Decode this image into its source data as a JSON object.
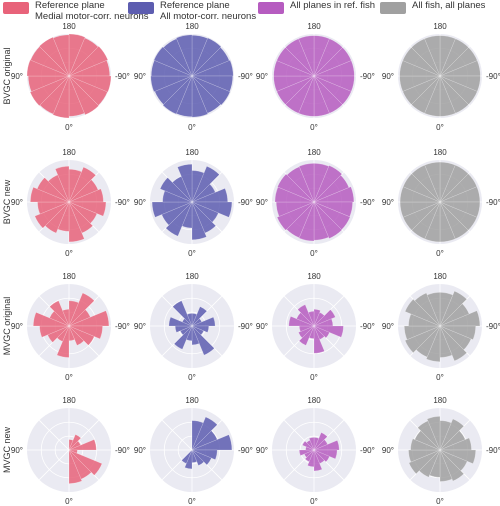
{
  "legend": [
    {
      "line1": "Reference plane",
      "line2": "Medial motor-corr. neurons",
      "color": "#e8637a"
    },
    {
      "line1": "Reference plane",
      "line2": "All motor-corr. neurons",
      "color": "#5d5db0"
    },
    {
      "line1": "All planes in ref. fish",
      "line2": "",
      "color": "#b65cc0"
    },
    {
      "line1": "All fish, all planes",
      "line2": "",
      "color": "#a0a0a0"
    }
  ],
  "row_labels": [
    "BVGC original",
    "BVGC new",
    "MVGC original",
    "MVGC new"
  ],
  "angle_labels": {
    "top": "180",
    "left": "90°",
    "right": "-90°",
    "bottom": "0°"
  },
  "chart_data": {
    "type": "polar-histogram",
    "bins": 16,
    "angle_labels": [
      "180",
      "90°",
      "-90°",
      "0°"
    ],
    "series_colors": [
      "#e8637a",
      "#5d5db0",
      "#b65cc0",
      "#a0a0a0"
    ],
    "rows": [
      {
        "label": "BVGC original",
        "panels": [
          [
            1.0,
            0.98,
            1.0,
            0.97,
            1.0,
            0.99,
            1.0,
            0.96,
            1.0,
            0.98,
            1.0,
            0.97,
            1.0,
            0.99,
            1.0,
            0.98
          ],
          [
            0.97,
            0.98,
            0.96,
            0.98,
            0.97,
            0.98,
            0.96,
            0.98,
            0.97,
            0.98,
            0.96,
            0.98,
            0.97,
            0.98,
            0.96,
            0.98
          ],
          [
            0.96,
            0.96,
            0.96,
            0.96,
            0.96,
            0.96,
            0.96,
            0.96,
            0.96,
            0.96,
            0.96,
            0.96,
            0.96,
            0.96,
            0.96,
            0.96
          ],
          [
            0.96,
            0.96,
            0.96,
            0.96,
            0.96,
            0.96,
            0.96,
            0.96,
            0.96,
            0.96,
            0.96,
            0.96,
            0.96,
            0.96,
            0.96,
            0.96
          ]
        ]
      },
      {
        "label": "BVGC new",
        "panels": [
          [
            0.78,
            0.9,
            0.75,
            0.82,
            0.88,
            0.72,
            0.8,
            0.95,
            0.7,
            0.8,
            0.88,
            0.75,
            0.92,
            0.82,
            0.7,
            0.85
          ],
          [
            0.75,
            0.92,
            0.6,
            0.85,
            0.95,
            0.68,
            0.8,
            0.9,
            0.62,
            0.88,
            0.78,
            0.95,
            0.7,
            0.82,
            0.66,
            0.9
          ],
          [
            0.92,
            0.94,
            0.9,
            0.95,
            0.92,
            0.93,
            0.94,
            0.91,
            0.93,
            0.92,
            0.95,
            0.9,
            0.93,
            0.94,
            0.91,
            0.92
          ],
          [
            0.95,
            0.95,
            0.95,
            0.95,
            0.95,
            0.95,
            0.95,
            0.95,
            0.95,
            0.95,
            0.95,
            0.95,
            0.95,
            0.95,
            0.95,
            0.95
          ]
        ]
      },
      {
        "label": "MVGC original",
        "panels": [
          [
            0.6,
            0.85,
            0.55,
            0.95,
            0.8,
            0.65,
            0.5,
            0.35,
            0.75,
            0.4,
            0.55,
            0.7,
            0.85,
            0.5,
            0.65,
            0.4
          ],
          [
            0.3,
            0.5,
            0.25,
            0.55,
            0.4,
            0.3,
            0.75,
            0.45,
            0.35,
            0.6,
            0.3,
            0.4,
            0.55,
            0.25,
            0.65,
            0.3
          ],
          [
            0.4,
            0.35,
            0.55,
            0.45,
            0.7,
            0.4,
            0.35,
            0.65,
            0.3,
            0.5,
            0.4,
            0.35,
            0.6,
            0.45,
            0.55,
            0.35
          ],
          [
            0.8,
            0.9,
            0.75,
            0.95,
            0.85,
            0.8,
            0.9,
            0.75,
            0.85,
            0.8,
            0.9,
            0.85,
            0.75,
            0.9,
            0.85,
            0.8
          ]
        ]
      },
      {
        "label": "MVGC new",
        "panels": [
          [
            0.25,
            0.4,
            0.3,
            0.65,
            0.2,
            0.85,
            0.75,
            0.8,
            0,
            0,
            0,
            0,
            0,
            0,
            0,
            0
          ],
          [
            0.7,
            0.85,
            0.65,
            0.95,
            0.6,
            0.5,
            0.4,
            0.3,
            0.45,
            0.35,
            0,
            0,
            0,
            0,
            0,
            0
          ],
          [
            0.3,
            0.45,
            0.35,
            0.6,
            0.55,
            0.4,
            0.35,
            0.5,
            0.4,
            0.3,
            0.25,
            0.35,
            0.2,
            0.3,
            0.25,
            0.3
          ],
          [
            0.7,
            0.8,
            0.65,
            0.75,
            0.85,
            0.7,
            0.8,
            0.75,
            0.65,
            0.7,
            0.8,
            0.75,
            0.7,
            0.65,
            0.75,
            0.8
          ]
        ]
      }
    ]
  }
}
